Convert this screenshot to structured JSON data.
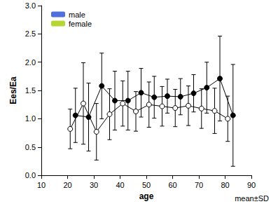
{
  "chart_data": {
    "type": "line",
    "x_label": "age",
    "y_label": "Ees/Ea",
    "annotation": "mean±SD",
    "xlim": [
      10,
      90
    ],
    "xticks": [
      10,
      20,
      30,
      40,
      50,
      60,
      70,
      80,
      90
    ],
    "ylim": [
      0,
      3
    ],
    "yticks": [
      {
        "value": 0,
        "label": "0.0"
      },
      {
        "value": 0.5,
        "label": "0.5"
      },
      {
        "value": 1,
        "label": "1.0"
      },
      {
        "value": 1.5,
        "label": "1.5"
      },
      {
        "value": 2,
        "label": "2.0"
      },
      {
        "value": 2.5,
        "label": "2.5"
      },
      {
        "value": 3,
        "label": "3.0"
      }
    ],
    "grid": false,
    "legend": "upper left",
    "series": [
      {
        "name": "male",
        "color": "#000000",
        "marker": "open circle",
        "line_style": "solid",
        "x": [
          21,
          26,
          31,
          36,
          41,
          46,
          51,
          56,
          61,
          66,
          71,
          76,
          81
        ],
        "values": [
          0.82,
          1.27,
          0.77,
          1.08,
          1.27,
          1.13,
          1.25,
          1.22,
          1.19,
          1.23,
          1.18,
          1.14,
          1.0
        ],
        "sd": [
          0.35,
          0.72,
          0.5,
          0.45,
          0.4,
          0.35,
          0.4,
          0.35,
          0.33,
          0.35,
          0.35,
          0.4,
          0.4
        ]
      },
      {
        "name": "female",
        "color": "#000000",
        "marker": "filled circle",
        "line_style": "solid",
        "x": [
          23,
          28,
          33,
          38,
          43,
          48,
          53,
          58,
          63,
          68,
          73,
          78,
          83
        ],
        "values": [
          1.06,
          1.03,
          1.58,
          1.32,
          1.32,
          1.46,
          1.38,
          1.4,
          1.39,
          1.45,
          1.55,
          1.71,
          1.06
        ],
        "sd": [
          0.48,
          0.6,
          0.58,
          0.52,
          0.52,
          0.43,
          0.37,
          0.3,
          0.32,
          0.33,
          0.45,
          0.75,
          0.9
        ]
      }
    ]
  }
}
